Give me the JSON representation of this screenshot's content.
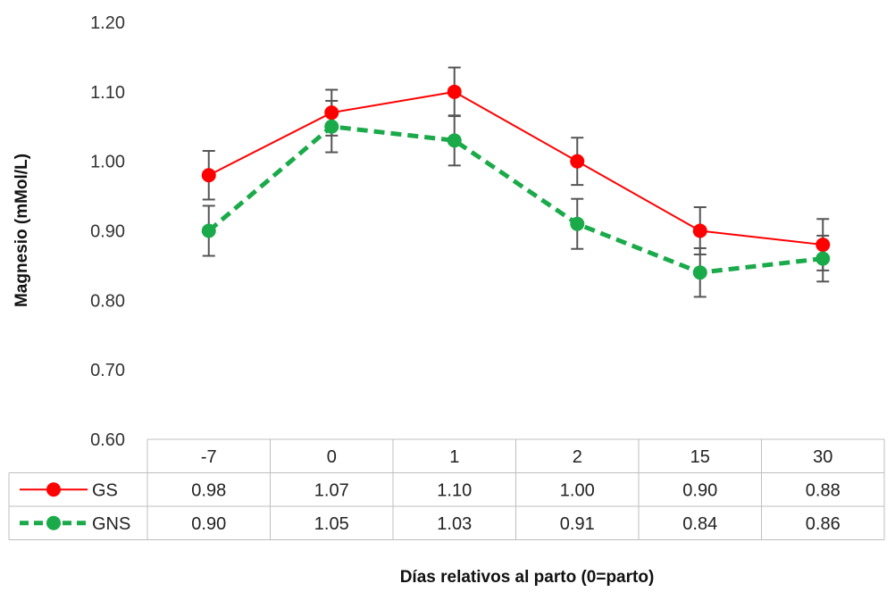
{
  "chart_data": {
    "type": "line",
    "categories": [
      "-7",
      "0",
      "1",
      "2",
      "15",
      "30"
    ],
    "ylabel": "Magnesio (mMol/L)",
    "xlabel": "Días relativos al parto (0=parto)",
    "ylim": [
      0.6,
      1.2
    ],
    "yticks": [
      "0.60",
      "0.70",
      "0.80",
      "0.90",
      "1.00",
      "1.10",
      "1.20"
    ],
    "grid": false,
    "legend": "data-table",
    "series": [
      {
        "name": "GS",
        "color": "#ff0000",
        "line_style": "solid",
        "values": [
          0.98,
          1.07,
          1.1,
          1.0,
          0.9,
          0.88
        ],
        "value_labels": [
          "0.98",
          "1.07",
          "1.10",
          "1.00",
          "0.90",
          "0.88"
        ],
        "error": [
          0.035,
          0.033,
          0.035,
          0.034,
          0.034,
          0.037
        ]
      },
      {
        "name": "GNS",
        "color": "#1aaa4a",
        "line_style": "dashed",
        "values": [
          0.9,
          1.05,
          1.03,
          0.91,
          0.84,
          0.86
        ],
        "value_labels": [
          "0.90",
          "1.05",
          "1.03",
          "0.91",
          "0.84",
          "0.86"
        ],
        "error": [
          0.036,
          0.037,
          0.036,
          0.036,
          0.035,
          0.033
        ]
      }
    ]
  }
}
